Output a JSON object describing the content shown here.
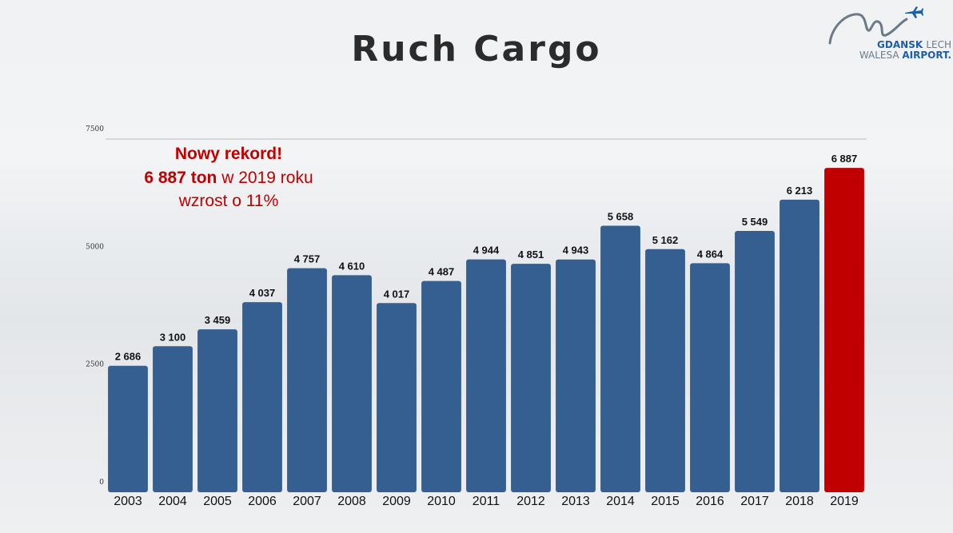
{
  "title": "Ruch Cargo",
  "logo": {
    "line1_bold": "GDANSK",
    "line1_thin": "LECH",
    "line2_thin": "WALESA",
    "line2_bold": "AIRPORT",
    "line2_dot": ".",
    "icon": "airplane-icon",
    "color_primary": "#1c5fa8",
    "color_secondary": "#6b7a88"
  },
  "annotation": {
    "headline": "Nowy rekord!",
    "value_bold": "6 887 ton",
    "value_rest": " w 2019 roku",
    "growth": "wzrost o 11%",
    "color": "#c00000"
  },
  "chart_data": {
    "type": "bar",
    "categories": [
      "2003",
      "2004",
      "2005",
      "2006",
      "2007",
      "2008",
      "2009",
      "2010",
      "2011",
      "2012",
      "2013",
      "2014",
      "2015",
      "2016",
      "2017",
      "2018",
      "2019"
    ],
    "values": [
      2686,
      3100,
      3459,
      4037,
      4757,
      4610,
      4017,
      4487,
      4944,
      4851,
      4943,
      5658,
      5162,
      4864,
      5549,
      6213,
      6887
    ],
    "value_labels": [
      "2 686",
      "3 100",
      "3 459",
      "4 037",
      "4 757",
      "4 610",
      "4 017",
      "4 487",
      "4 944",
      "4 851",
      "4 943",
      "5 658",
      "5 162",
      "4 864",
      "5 549",
      "6 213",
      "6 887"
    ],
    "ylim": [
      0,
      7500
    ],
    "yticks": [
      0,
      2500,
      5000,
      7500
    ],
    "ytick_labels": [
      "0",
      "2500",
      "5000",
      "7500"
    ],
    "title": "Ruch Cargo",
    "xlabel": "",
    "ylabel": "",
    "grid": false,
    "bar_color": "#365f91",
    "highlight_color": "#c00000",
    "highlight_index": 16
  }
}
